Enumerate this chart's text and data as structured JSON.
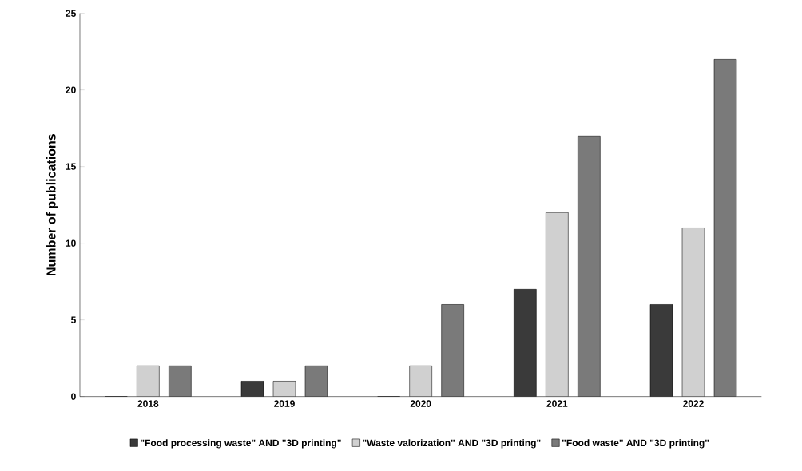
{
  "chart_data": {
    "type": "bar",
    "ylabel": "Number of publications",
    "categories": [
      "2018",
      "2019",
      "2020",
      "2021",
      "2022"
    ],
    "series": [
      {
        "name": "\"Food processing waste\" AND \"3D printing\"",
        "color": "#3a3a3a",
        "values": [
          0,
          1,
          0,
          7,
          6
        ]
      },
      {
        "name": "\"Waste valorization\" AND \"3D printing\"",
        "color": "#d0d0d0",
        "values": [
          2,
          1,
          2,
          12,
          11
        ]
      },
      {
        "name": "\"Food waste\" AND \"3D printing\"",
        "color": "#7a7a7a",
        "values": [
          2,
          2,
          6,
          17,
          22
        ]
      }
    ],
    "ylim": [
      0,
      25
    ],
    "yticks": [
      0,
      5,
      10,
      15,
      20,
      25
    ],
    "legend": "bottom"
  }
}
